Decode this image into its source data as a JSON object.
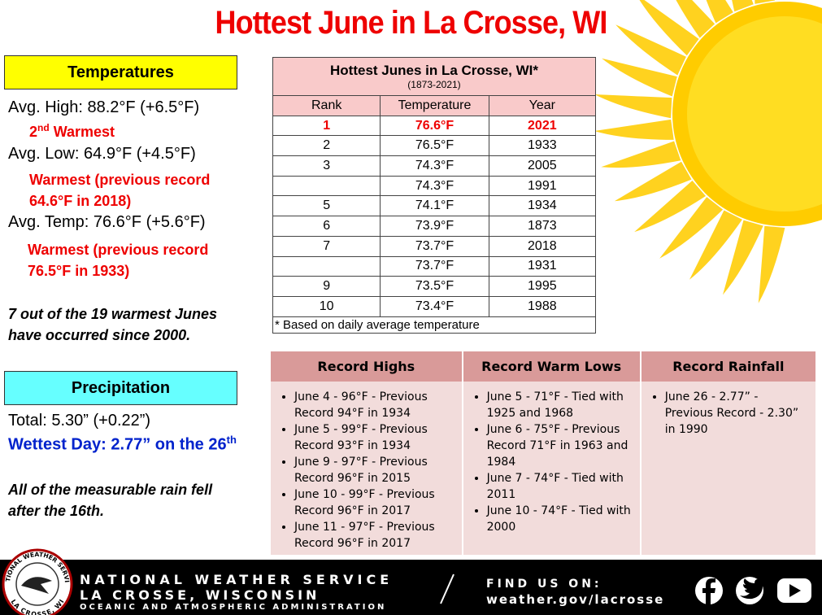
{
  "title": "Hottest June in La Crosse, WI",
  "temperatures": {
    "heading": "Temperatures",
    "avg_high": "Avg. High:  88.2°F (+6.5°F)",
    "avg_high_rank": {
      "num": "2",
      "sup": "nd",
      "rest": " Warmest"
    },
    "avg_low": "Avg. Low:  64.9°F (+4.5°F)",
    "avg_low_note": "Warmest (previous record 64.6°F in 2018)",
    "avg_temp": "Avg. Temp:  76.6°F (+5.6°F)",
    "avg_temp_note": "Warmest (previous record 76.5°F in 1933)",
    "summary": "7 out of the 19 warmest Junes have occurred since 2000."
  },
  "precipitation": {
    "heading": "Precipitation",
    "total": "Total:  5.30” (+0.22”)",
    "wettest_day": {
      "text": "Wettest Day: 2.77” on the 26",
      "sup": "th"
    },
    "summary": "All of the measurable rain fell after the 16th."
  },
  "table": {
    "title": "Hottest Junes in La Crosse, WI*",
    "subtitle": "(1873-2021)",
    "columns": [
      "Rank",
      "Temperature",
      "Year"
    ],
    "rows": [
      [
        1,
        "76.6°F",
        2021
      ],
      [
        2,
        "76.5°F",
        1933
      ],
      [
        3,
        "74.3°F",
        2005
      ],
      [
        null,
        "74.3°F",
        1991
      ],
      [
        5,
        "74.1°F",
        1934
      ],
      [
        6,
        "73.9°F",
        1873
      ],
      [
        7,
        "73.7°F",
        2018
      ],
      [
        null,
        "73.7°F",
        1931
      ],
      [
        9,
        "73.5°F",
        1995
      ],
      [
        10,
        "73.4°F",
        1988
      ]
    ],
    "footnote": "* Based on daily average temperature"
  },
  "records": [
    {
      "heading": "Record Highs",
      "items": [
        "June 4 - 96°F - Previous Record 94°F in 1934",
        "June 5 - 99°F - Previous Record 93°F in 1934",
        "June 9 - 97°F - Previous Record 96°F in 2015",
        "June 10 - 99°F - Previous Record 96°F in 2017",
        "June 11 - 97°F - Previous Record 96°F in 2017"
      ]
    },
    {
      "heading": "Record Warm Lows",
      "items": [
        "June 5 - 71°F - Tied with 1925 and 1968",
        "June 6 - 75°F - Previous Record 71°F in 1963 and 1984",
        "June 7 - 74°F - Tied with 2011",
        "June 10 - 74°F - Tied with 2000"
      ]
    },
    {
      "heading": "Record Rainfall",
      "items": [
        "June 26 - 2.77” - Previous Record - 2.30” in 1990"
      ]
    }
  ],
  "footer": {
    "logo_top": "NATIONAL WEATHER SERVICE",
    "logo_bottom": "LA CROSSE, WI",
    "org": "NATIONAL WEATHER SERVICE",
    "office": "LA CROSSE, WISCONSIN",
    "parent": "OCEANIC AND ATMOSPHERIC ADMINISTRATION",
    "find_us": "FIND US ON:",
    "url": "weather.gov/lacrosse"
  }
}
